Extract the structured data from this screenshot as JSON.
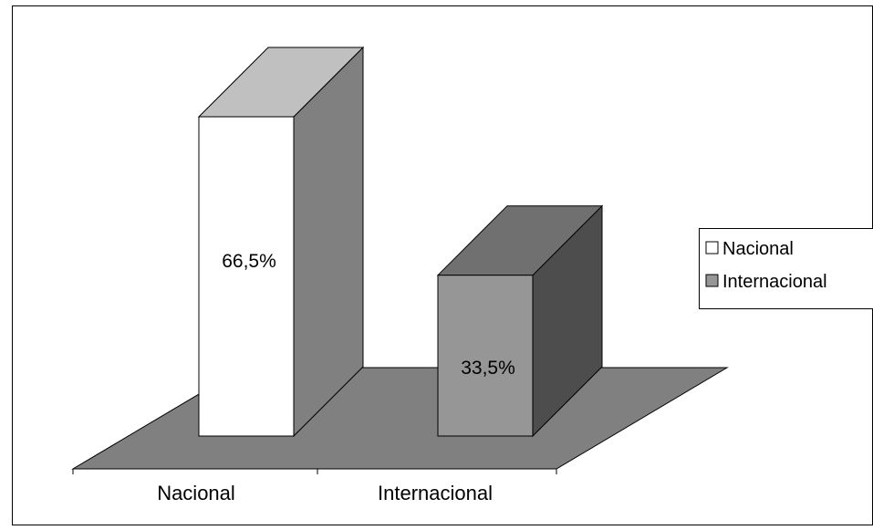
{
  "chart_data": {
    "type": "bar",
    "style": "3d-column",
    "title": "",
    "xlabel": "",
    "ylabel": "",
    "categories": [
      "Nacional",
      "Internacional"
    ],
    "values": [
      66.5,
      33.5
    ],
    "ylim": [
      0,
      70
    ],
    "data_labels": [
      "66,5%",
      "33,5%"
    ],
    "grid": false,
    "legend": {
      "position": "right",
      "entries": [
        "Nacional",
        "Internacional"
      ]
    },
    "colors": {
      "front": [
        "#ffffff",
        "#969696"
      ],
      "top": [
        "#c0c0c0",
        "#707070"
      ],
      "side": [
        "#808080",
        "#4d4d4d"
      ],
      "floor": "#808080",
      "outline": "#000000",
      "border": "#000000"
    }
  }
}
